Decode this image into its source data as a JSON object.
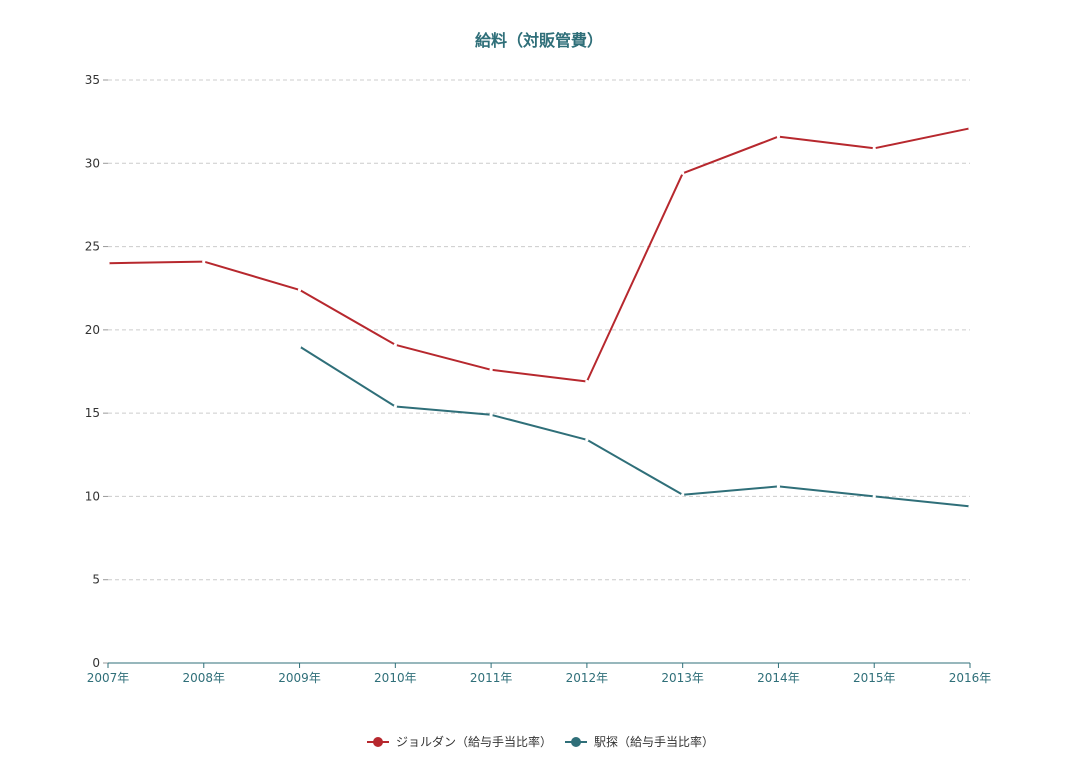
{
  "chart_data": {
    "type": "line",
    "title": "給料（対販管費）",
    "xlabel": "",
    "ylabel": "",
    "categories": [
      "2007年",
      "2008年",
      "2009年",
      "2010年",
      "2011年",
      "2012年",
      "2013年",
      "2014年",
      "2015年",
      "2016年"
    ],
    "series": [
      {
        "name": "ジョルダン（給与手当比率）",
        "color": "#b7282e",
        "values": [
          24.0,
          24.1,
          22.4,
          19.1,
          17.6,
          16.9,
          29.4,
          31.6,
          30.9,
          32.1
        ]
      },
      {
        "name": "駅探（給与手当比率）",
        "color": "#2f6f79",
        "values": [
          null,
          null,
          19.0,
          15.4,
          14.9,
          13.4,
          10.1,
          10.6,
          10.0,
          9.4
        ]
      }
    ],
    "ylim": [
      0,
      35
    ],
    "yticks": [
      0,
      5,
      10,
      15,
      20,
      25,
      30,
      35
    ],
    "grid": true,
    "legend": "bottom-center",
    "colors": {
      "title": "#2f6f79",
      "axis": "#2f6f79",
      "grid": "#cccccc",
      "point": "#ffffff"
    }
  }
}
